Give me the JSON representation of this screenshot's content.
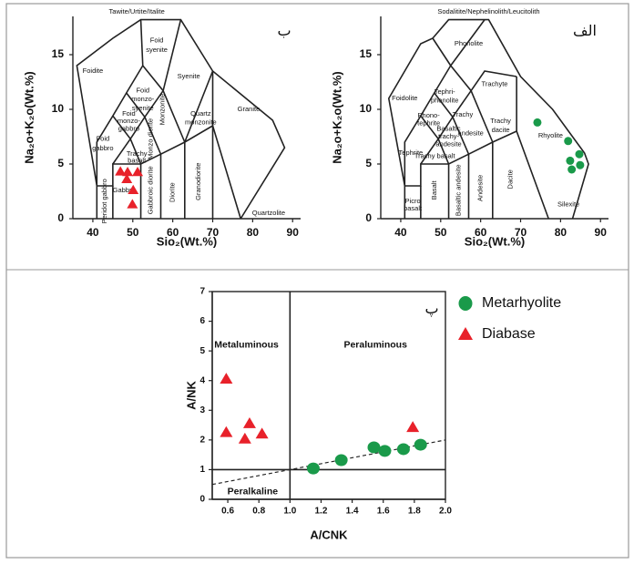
{
  "chart_data": [
    {
      "type": "scatter",
      "panel_label": "ب",
      "xlabel": "Sio₂(Wt.%)",
      "ylabel": "Na₂o+K₂o(Wt.%)",
      "xlim": [
        35,
        92
      ],
      "ylim": [
        0,
        18.5
      ],
      "xticks": [
        40,
        50,
        60,
        70,
        80,
        90
      ],
      "yticks": [
        0,
        5,
        10,
        15
      ],
      "series": [
        {
          "color": "#e8212a",
          "marker": "triangle",
          "x": [
            46.9,
            48.7,
            51.2,
            48.5,
            50.1,
            49.9
          ],
          "values": [
            4.3,
            4.25,
            4.25,
            3.6,
            2.6,
            1.3
          ]
        }
      ],
      "boundaries": [
        [
          [
            41,
            0
          ],
          [
            41,
            3
          ],
          [
            36,
            14
          ],
          [
            45,
            16.5
          ],
          [
            52,
            18.2
          ],
          [
            62,
            18.2
          ],
          [
            70,
            13.5
          ],
          [
            85,
            9
          ],
          [
            88,
            6.5
          ],
          [
            77,
            0
          ]
        ],
        [
          [
            41,
            3
          ],
          [
            45,
            3
          ],
          [
            45,
            5
          ],
          [
            52,
            5
          ],
          [
            57,
            5.9
          ],
          [
            63,
            7
          ],
          [
            70,
            8.5
          ],
          [
            77,
            0
          ]
        ],
        [
          [
            45,
            0
          ],
          [
            45,
            3
          ]
        ],
        [
          [
            52,
            0
          ],
          [
            52,
            5
          ]
        ],
        [
          [
            57,
            0
          ],
          [
            57,
            5.9
          ]
        ],
        [
          [
            63,
            0
          ],
          [
            63,
            7
          ]
        ],
        [
          [
            70,
            0
          ],
          [
            70,
            8.5
          ]
        ],
        [
          [
            41,
            3
          ],
          [
            41,
            7
          ],
          [
            45,
            9.4
          ],
          [
            48.4,
            11.5
          ],
          [
            52.5,
            14
          ],
          [
            57.6,
            11.7
          ],
          [
            63,
            7
          ]
        ],
        [
          [
            45,
            5
          ],
          [
            49.4,
            7.3
          ],
          [
            53,
            9.3
          ],
          [
            57.6,
            11.7
          ]
        ],
        [
          [
            45,
            9.4
          ],
          [
            49.4,
            7.3
          ],
          [
            52,
            5
          ]
        ],
        [
          [
            48.4,
            11.5
          ],
          [
            53,
            9.3
          ],
          [
            57,
            5.9
          ]
        ],
        [
          [
            52.5,
            14
          ],
          [
            52,
            18.2
          ]
        ],
        [
          [
            57.6,
            11.7
          ],
          [
            62,
            18.2
          ]
        ],
        [
          [
            63,
            7
          ],
          [
            70,
            13.5
          ]
        ],
        [
          [
            70,
            8.5
          ],
          [
            70,
            13.5
          ]
        ]
      ],
      "annotations": [
        {
          "text": "Tawite/Urtite/Italite",
          "x": 51,
          "y": 18.9
        },
        {
          "text": "Foidite",
          "x": 40,
          "y": 13.5
        },
        {
          "text": "Foid",
          "x": 56,
          "y": 16.3
        },
        {
          "text": "syenite",
          "x": 56,
          "y": 15.4
        },
        {
          "text": "Syenite",
          "x": 64,
          "y": 13
        },
        {
          "text": "Foid",
          "x": 52.5,
          "y": 11.7
        },
        {
          "text": "monzo-",
          "x": 52.5,
          "y": 10.9
        },
        {
          "text": "syenite",
          "x": 52.5,
          "y": 10.1
        },
        {
          "text": "Foid",
          "x": 49,
          "y": 9.6
        },
        {
          "text": "monzo-",
          "x": 49,
          "y": 8.9
        },
        {
          "text": "gabbro",
          "x": 49,
          "y": 8.2
        },
        {
          "text": "Monzonite",
          "x": 57.5,
          "y": 10,
          "rotate": true
        },
        {
          "text": "Foid",
          "x": 42.5,
          "y": 7.3
        },
        {
          "text": "gabbro",
          "x": 42.5,
          "y": 6.4
        },
        {
          "text": "Monzo diorite",
          "x": 54.5,
          "y": 7.3,
          "rotate": true
        },
        {
          "text": "Quartz",
          "x": 67,
          "y": 9.6
        },
        {
          "text": "monzonite",
          "x": 67,
          "y": 8.8
        },
        {
          "text": "Granite",
          "x": 79,
          "y": 10
        },
        {
          "text": "Trachy",
          "x": 51,
          "y": 5.9
        },
        {
          "text": "basalt",
          "x": 51,
          "y": 5.3
        },
        {
          "text": "Gabbro",
          "x": 47.8,
          "y": 2.6
        },
        {
          "text": "Peridot gabbro",
          "x": 43,
          "y": 1.6,
          "rotate": true
        },
        {
          "text": "Gabbroic diorite",
          "x": 54.5,
          "y": 2.6,
          "rotate": true
        },
        {
          "text": "Diorite",
          "x": 60,
          "y": 2.4,
          "rotate": true
        },
        {
          "text": "Granodiorite",
          "x": 66.5,
          "y": 3.4,
          "rotate": true
        },
        {
          "text": "Quartzolite",
          "x": 84,
          "y": 0.5
        }
      ]
    },
    {
      "type": "scatter",
      "panel_label": "الف",
      "xlabel": "Sio₂(Wt.%)",
      "ylabel": "Na₂o+K₂o(Wt.%)",
      "xlim": [
        35,
        92
      ],
      "ylim": [
        0,
        18.5
      ],
      "xticks": [
        40,
        50,
        60,
        70,
        80,
        90
      ],
      "yticks": [
        0,
        5,
        10,
        15
      ],
      "series": [
        {
          "color": "#1a9a4a",
          "marker": "circle",
          "x": [
            74.2,
            81.9,
            84.7,
            82.4,
            84.9,
            82.8
          ],
          "values": [
            8.8,
            7.1,
            5.9,
            5.3,
            4.9,
            4.5
          ]
        }
      ],
      "boundaries": [
        [
          [
            41,
            0
          ],
          [
            41,
            3
          ],
          [
            37,
            11
          ],
          [
            45,
            16
          ],
          [
            48,
            16.5
          ],
          [
            52,
            18.2
          ],
          [
            62,
            18.2
          ],
          [
            70,
            13
          ],
          [
            78,
            10
          ],
          [
            86,
            6
          ],
          [
            87,
            5
          ],
          [
            83,
            0
          ]
        ],
        [
          [
            41,
            3
          ],
          [
            45,
            3
          ],
          [
            45,
            5
          ],
          [
            52,
            5
          ],
          [
            57,
            5.9
          ],
          [
            63,
            7
          ],
          [
            69,
            8
          ],
          [
            77,
            0
          ]
        ],
        [
          [
            45,
            0
          ],
          [
            45,
            3
          ]
        ],
        [
          [
            52,
            0
          ],
          [
            52,
            5
          ]
        ],
        [
          [
            57,
            0
          ],
          [
            57,
            5.9
          ]
        ],
        [
          [
            63,
            0
          ],
          [
            63,
            7
          ]
        ],
        [
          [
            41,
            3
          ],
          [
            41,
            7
          ],
          [
            45,
            9.4
          ],
          [
            48.4,
            11.5
          ],
          [
            52.5,
            14
          ],
          [
            57.6,
            11.7
          ],
          [
            63,
            7
          ]
        ],
        [
          [
            45,
            5
          ],
          [
            49.4,
            7.3
          ],
          [
            53,
            9.3
          ],
          [
            57.6,
            11.7
          ]
        ],
        [
          [
            45,
            9.4
          ],
          [
            49.4,
            7.3
          ],
          [
            52,
            5
          ]
        ],
        [
          [
            48.4,
            11.5
          ],
          [
            53,
            9.3
          ],
          [
            57,
            5.9
          ]
        ],
        [
          [
            52.5,
            14
          ],
          [
            48,
            16.5
          ]
        ],
        [
          [
            52.5,
            14
          ],
          [
            61,
            18.2
          ]
        ],
        [
          [
            57.6,
            11.7
          ],
          [
            61,
            13.5
          ],
          [
            69,
            13
          ]
        ],
        [
          [
            69,
            8
          ],
          [
            69,
            13
          ]
        ]
      ],
      "annotations": [
        {
          "text": "Sodalitite/Nephelinolith/Leucitolith",
          "x": 62,
          "y": 18.9
        },
        {
          "text": "Phonolite",
          "x": 57,
          "y": 16
        },
        {
          "text": "Foidolite",
          "x": 41,
          "y": 11
        },
        {
          "text": "Trachyte",
          "x": 63.5,
          "y": 12.3
        },
        {
          "text": "Tephri-",
          "x": 51,
          "y": 11.6
        },
        {
          "text": "phonolite",
          "x": 51,
          "y": 10.8
        },
        {
          "text": "Phono-",
          "x": 47,
          "y": 9.4
        },
        {
          "text": "tephrite",
          "x": 47,
          "y": 8.7
        },
        {
          "text": "Trachy",
          "x": 55.5,
          "y": 9.5
        },
        {
          "text": "andesite",
          "x": 57.5,
          "y": 7.8
        },
        {
          "text": "Basaltic",
          "x": 52,
          "y": 8.2
        },
        {
          "text": "trachy-",
          "x": 52,
          "y": 7.5
        },
        {
          "text": "andesite",
          "x": 52,
          "y": 6.8
        },
        {
          "text": "Trachy basalt",
          "x": 48.5,
          "y": 5.7
        },
        {
          "text": "Tephrite",
          "x": 42.5,
          "y": 6
        },
        {
          "text": "Trachy",
          "x": 65,
          "y": 8.9
        },
        {
          "text": "dacite",
          "x": 65,
          "y": 8.1
        },
        {
          "text": "Rhyolite",
          "x": 77.5,
          "y": 7.6
        },
        {
          "text": "Picro",
          "x": 43,
          "y": 1.6
        },
        {
          "text": "basalt",
          "x": 43,
          "y": 0.9
        },
        {
          "text": "Basalt",
          "x": 48.5,
          "y": 2.6,
          "rotate": true
        },
        {
          "text": "Basaltic andesite",
          "x": 54.5,
          "y": 2.6,
          "rotate": true
        },
        {
          "text": "Andesite",
          "x": 60,
          "y": 2.8,
          "rotate": true
        },
        {
          "text": "Dacite",
          "x": 67.5,
          "y": 3.6,
          "rotate": true
        },
        {
          "text": "Silexite",
          "x": 82,
          "y": 1.3
        }
      ]
    },
    {
      "type": "scatter",
      "panel_label": "پ",
      "xlabel": "A/CNK",
      "ylabel": "A/NK",
      "xlim": [
        0.5,
        2.0
      ],
      "ylim": [
        0,
        7
      ],
      "xticks": [
        0.6,
        0.8,
        {
          "value": 1,
          "label": "1.0"
        },
        1.2,
        1.4,
        1.6,
        1.8,
        {
          "value": 2,
          "label": "2.0"
        }
      ],
      "yticks": [
        0,
        1,
        2,
        3,
        4,
        5,
        6,
        7
      ],
      "legend": "right",
      "series": [
        {
          "name": "Metarhyolite",
          "color": "#1a9a4a",
          "marker": "circle",
          "x": [
            1.15,
            1.33,
            1.54,
            1.61,
            1.73,
            1.84
          ],
          "values": [
            1.04,
            1.32,
            1.75,
            1.63,
            1.69,
            1.84
          ]
        },
        {
          "name": "Diabase",
          "color": "#e8212a",
          "marker": "triangle",
          "x": [
            0.59,
            0.59,
            0.74,
            0.71,
            0.82,
            1.79
          ],
          "values": [
            4.05,
            2.25,
            2.55,
            2.03,
            2.2,
            2.42
          ]
        }
      ],
      "boundaries": [
        [
          [
            1,
            0
          ],
          [
            1,
            7
          ]
        ],
        [
          [
            0.5,
            1
          ],
          [
            2,
            1
          ]
        ]
      ],
      "dashed": [
        [
          [
            0.5,
            0.5
          ],
          [
            2,
            2
          ]
        ]
      ],
      "annotations": [
        {
          "text": "Metaluminous",
          "x": 0.72,
          "y": 5.2
        },
        {
          "text": "Peraluminous",
          "x": 1.55,
          "y": 5.2
        },
        {
          "text": "Peralkaline",
          "x": 0.76,
          "y": 0.25
        }
      ]
    }
  ]
}
